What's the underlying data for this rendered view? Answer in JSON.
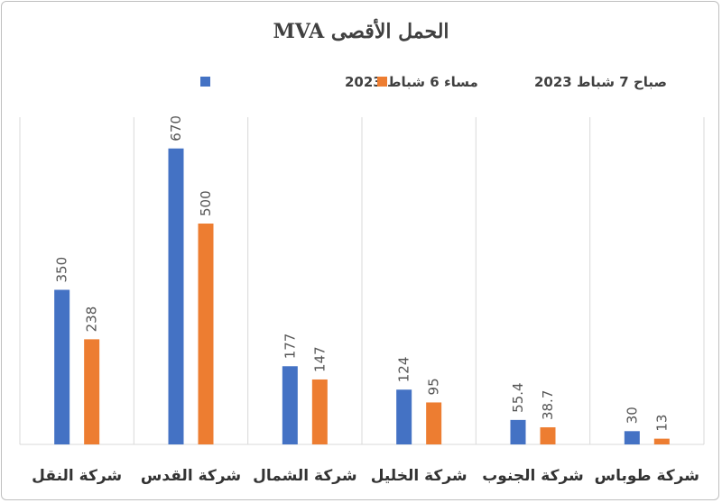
{
  "chart_data": {
    "type": "bar",
    "title": "الحمل الأقصى MVA",
    "categories": [
      "شركة النقل",
      "شركة القدس",
      "شركة الشمال",
      "شركة الخليل",
      "شركة الجنوب",
      "شركة طوباس"
    ],
    "series": [
      {
        "name": "مساء 6 شباط 2023",
        "color": "#4472C4",
        "values": [
          350,
          670,
          177,
          124,
          55.4,
          30
        ]
      },
      {
        "name": "صباح 7 شباط 2023",
        "color": "#ED7D31",
        "values": [
          238,
          500,
          147,
          95,
          38.7,
          13
        ]
      }
    ],
    "data_labels": [
      [
        "350",
        "670",
        "177",
        "124",
        "55.4",
        "30"
      ],
      [
        "238",
        "500",
        "147",
        "95",
        "38.7",
        "13"
      ]
    ],
    "ylim": [
      0,
      700
    ],
    "xlabel": "",
    "ylabel": "",
    "legend_position": "top",
    "grid": "vertical-separators"
  }
}
